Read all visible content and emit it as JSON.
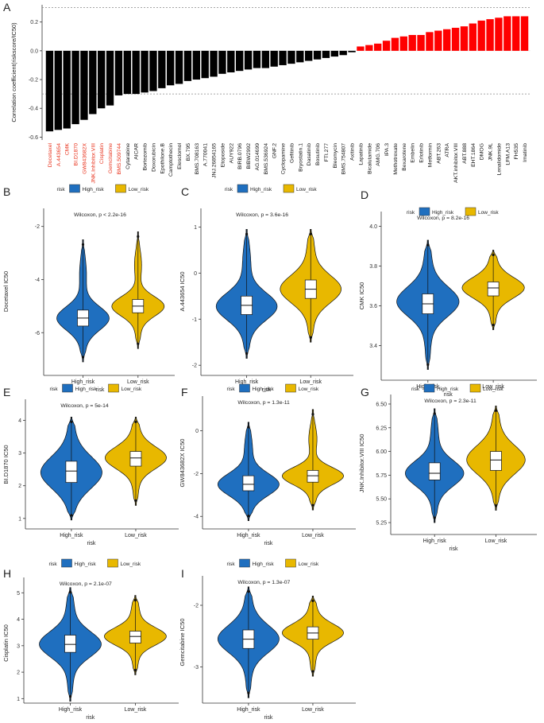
{
  "panel_labels": [
    "A",
    "B",
    "C",
    "D",
    "E",
    "F",
    "G",
    "H",
    "I"
  ],
  "colors": {
    "negative": "#000000",
    "positive": "#ff0000",
    "high": "#1f6fbf",
    "low": "#e8b800",
    "label_red": "#e8301a"
  },
  "chart_data": [
    {
      "panel": "A",
      "type": "bar",
      "ylabel": "Correlation coefficient(riskscore/IC50)",
      "ylim": [
        -0.62,
        0.32
      ],
      "yticks": [
        -0.6,
        -0.4,
        -0.2,
        0.0,
        0.2
      ],
      "ytick_labels": [
        "-0.6",
        "-0.4",
        "-0.2",
        "0.0",
        "0.2"
      ],
      "reference_lines": [
        0.3,
        -0.3
      ],
      "highlighted_count": 9,
      "categories": [
        "Docetaxel",
        "A.443654",
        "CMK",
        "BI.D1870",
        "GW843682X",
        "JNK.Inhibitor.VIII",
        "Cisplatin",
        "Gemcitabine",
        "BMS.509744",
        "Cytarabine",
        "AICAR",
        "Bortezomib",
        "Doxorubicin",
        "Epothilone.B",
        "Camptothecin",
        "Elesclomol",
        "BX.795",
        "BMS.708163",
        "A.770041",
        "JNJ.26854165",
        "Etoposide",
        "AUY922",
        "BIRB.0796",
        "BIBW2992",
        "AG.014699",
        "BMS.536924",
        "GNF.2",
        "Cyclopamine",
        "Gefitinib",
        "Bryostatin.1",
        "Dasatinib",
        "Bosutinib",
        "FTI.277",
        "Bleomycin",
        "BMS.754807",
        "Axitinib",
        "Lapatinib",
        "Bicalutamide",
        "AMG.706",
        "IPA.3",
        "Methotrexate",
        "Bexarotene",
        "Embelin",
        "Erlotinib",
        "Metformin",
        "ABT.263",
        "ATRA",
        "AKT.inhibitor.VIII",
        "ABT.888",
        "EHT.1864",
        "DMOG",
        "JNK.9L",
        "Lenalidomide",
        "LFM.A13",
        "FH535",
        "Imatinib"
      ],
      "values": [
        -0.56,
        -0.55,
        -0.54,
        -0.51,
        -0.48,
        -0.44,
        -0.4,
        -0.38,
        -0.31,
        -0.3,
        -0.3,
        -0.29,
        -0.28,
        -0.26,
        -0.24,
        -0.23,
        -0.21,
        -0.2,
        -0.19,
        -0.18,
        -0.16,
        -0.15,
        -0.14,
        -0.13,
        -0.12,
        -0.12,
        -0.11,
        -0.1,
        -0.09,
        -0.08,
        -0.07,
        -0.06,
        -0.05,
        -0.04,
        -0.03,
        -0.01,
        0.03,
        0.04,
        0.05,
        0.07,
        0.09,
        0.1,
        0.11,
        0.11,
        0.13,
        0.14,
        0.15,
        0.16,
        0.17,
        0.19,
        0.21,
        0.22,
        0.23,
        0.24,
        0.24,
        0.24
      ]
    },
    {
      "panel": "B",
      "type": "violin",
      "ylabel": "Docetaxel IC50",
      "xlabel": "risk",
      "legend_title": "risk",
      "groups": [
        "High_risk",
        "Low_risk"
      ],
      "annotation": "Wilcoxon, p < 2.2e-16",
      "ylim": [
        -7.4,
        -1.5
      ],
      "yticks": [
        -6,
        -4,
        -2
      ],
      "ytick_labels": [
        "-6",
        "-4",
        "-2"
      ],
      "stats": [
        {
          "min": -7.1,
          "q1": -5.75,
          "median": -5.45,
          "q3": -5.15,
          "max": -2.5,
          "mode": -5.45
        },
        {
          "min": -6.6,
          "q1": -5.25,
          "median": -5.0,
          "q3": -4.75,
          "max": -2.2,
          "mode": -5.0
        }
      ]
    },
    {
      "panel": "C",
      "type": "violin",
      "ylabel": "A.443654 IC50",
      "xlabel": "risk",
      "legend_title": "risk",
      "groups": [
        "High_risk",
        "Low_risk"
      ],
      "annotation": "Wilcoxon, p = 3.6e-16",
      "ylim": [
        -2.1,
        1.3
      ],
      "yticks": [
        -2,
        -1,
        0,
        1
      ],
      "ytick_labels": [
        "-2",
        "-1",
        "0",
        "1"
      ],
      "stats": [
        {
          "min": -1.85,
          "q1": -0.9,
          "median": -0.7,
          "q3": -0.5,
          "max": 0.95,
          "mode": -0.72
        },
        {
          "min": -1.5,
          "q1": -0.55,
          "median": -0.35,
          "q3": -0.15,
          "max": 0.95,
          "mode": -0.35
        }
      ]
    },
    {
      "panel": "D",
      "type": "violin",
      "ylabel": "CMK IC50",
      "xlabel": "risk",
      "legend_title": "risk",
      "groups": [
        "High_risk",
        "Low_risk"
      ],
      "annotation": "Wilcoxon, p = 8.2e-16",
      "ylim": [
        3.25,
        4.05
      ],
      "yticks": [
        3.4,
        3.6,
        3.8,
        4.0
      ],
      "ytick_labels": [
        "3.4",
        "3.6",
        "3.8",
        "4.0"
      ],
      "stats": [
        {
          "min": 3.28,
          "q1": 3.56,
          "median": 3.61,
          "q3": 3.66,
          "max": 3.93,
          "mode": 3.62
        },
        {
          "min": 3.48,
          "q1": 3.65,
          "median": 3.69,
          "q3": 3.72,
          "max": 3.88,
          "mode": 3.69
        }
      ]
    },
    {
      "panel": "E",
      "type": "violin",
      "ylabel": "BI.D1870 IC50",
      "xlabel": "risk",
      "legend_title": "risk",
      "groups": [
        "High_risk",
        "Low_risk"
      ],
      "annotation": "Wilcoxon, p = 5e-14",
      "ylim": [
        0.8,
        4.5
      ],
      "yticks": [
        1,
        2,
        3,
        4
      ],
      "ytick_labels": [
        "1",
        "2",
        "3",
        "4"
      ],
      "stats": [
        {
          "min": 0.95,
          "q1": 2.1,
          "median": 2.45,
          "q3": 2.75,
          "max": 4.1,
          "mode": 2.4
        },
        {
          "min": 1.4,
          "q1": 2.6,
          "median": 2.85,
          "q3": 3.05,
          "max": 4.1,
          "mode": 2.85
        }
      ]
    },
    {
      "panel": "F",
      "type": "violin",
      "ylabel": "GW843682X IC50",
      "xlabel": "risk",
      "legend_title": "risk",
      "groups": [
        "High_risk",
        "Low_risk"
      ],
      "annotation": "Wilcoxon, p = 1.3e-11",
      "ylim": [
        -4.4,
        1.4
      ],
      "yticks": [
        -4,
        -2,
        0
      ],
      "ytick_labels": [
        "-4",
        "-2",
        "0"
      ],
      "stats": [
        {
          "min": -4.2,
          "q1": -2.8,
          "median": -2.5,
          "q3": -2.1,
          "max": 0.4,
          "mode": -2.5
        },
        {
          "min": -3.7,
          "q1": -2.4,
          "median": -2.1,
          "q3": -1.85,
          "max": 1.0,
          "mode": -2.1
        }
      ]
    },
    {
      "panel": "G",
      "type": "violin",
      "ylabel": "JNK.Inhibitor.VIII IC50",
      "xlabel": "risk",
      "legend_title": "risk",
      "groups": [
        "High_risk",
        "Low_risk"
      ],
      "annotation": "Wilcoxon, p = 2.3e-11",
      "ylim": [
        5.2,
        6.55
      ],
      "yticks": [
        5.25,
        5.5,
        5.75,
        6.0,
        6.25,
        6.5
      ],
      "ytick_labels": [
        "5.25",
        "5.50",
        "5.75",
        "6.00",
        "6.25",
        "6.50"
      ],
      "stats": [
        {
          "min": 5.25,
          "q1": 5.7,
          "median": 5.77,
          "q3": 5.88,
          "max": 6.45,
          "mode": 5.77
        },
        {
          "min": 5.38,
          "q1": 5.8,
          "median": 5.91,
          "q3": 6.0,
          "max": 6.48,
          "mode": 5.91
        }
      ]
    },
    {
      "panel": "H",
      "type": "violin",
      "ylabel": "Cisplatin IC50",
      "xlabel": "risk",
      "legend_title": "risk",
      "groups": [
        "High_risk",
        "Low_risk"
      ],
      "annotation": "Wilcoxon, p = 2.1e-07",
      "ylim": [
        0.8,
        5.4
      ],
      "yticks": [
        1,
        2,
        3,
        4,
        5
      ],
      "ytick_labels": [
        "1",
        "2",
        "3",
        "4",
        "5"
      ],
      "stats": [
        {
          "min": 0.9,
          "q1": 2.75,
          "median": 3.05,
          "q3": 3.4,
          "max": 5.2,
          "mode": 3.05
        },
        {
          "min": 1.9,
          "q1": 3.1,
          "median": 3.35,
          "q3": 3.55,
          "max": 4.9,
          "mode": 3.35
        }
      ]
    },
    {
      "panel": "I",
      "type": "violin",
      "ylabel": "Gemcitabine IC50",
      "xlabel": "risk",
      "legend_title": "risk",
      "groups": [
        "High_risk",
        "Low_risk"
      ],
      "annotation": "Wilcoxon, p = 1.3e-07",
      "ylim": [
        -3.6,
        -1.6
      ],
      "yticks": [
        -3,
        -2
      ],
      "ytick_labels": [
        "-3",
        "-2"
      ],
      "stats": [
        {
          "min": -3.5,
          "q1": -2.7,
          "median": -2.55,
          "q3": -2.4,
          "max": -1.7,
          "mode": -2.55
        },
        {
          "min": -3.15,
          "q1": -2.55,
          "median": -2.45,
          "q3": -2.35,
          "max": -1.85,
          "mode": -2.45
        }
      ]
    }
  ]
}
